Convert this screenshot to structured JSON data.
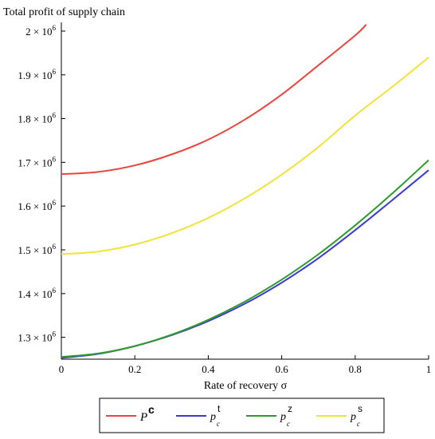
{
  "chart_data": {
    "type": "line",
    "ylabel": "Total profit of supply chain",
    "xlabel": "Rate of recovery σ",
    "xlim": [
      0,
      1
    ],
    "ylim": [
      1250000,
      2020000
    ],
    "x_ticks": [
      0,
      0.2,
      0.4,
      0.6,
      0.8,
      1
    ],
    "x_tick_labels": [
      "0",
      "0.2",
      "0.4",
      "0.6",
      "0.8",
      "1"
    ],
    "y_ticks": [
      {
        "mantissa": "1.3",
        "value": 1300000
      },
      {
        "mantissa": "1.4",
        "value": 1400000
      },
      {
        "mantissa": "1.5",
        "value": 1500000
      },
      {
        "mantissa": "1.6",
        "value": 1600000
      },
      {
        "mantissa": "1.7",
        "value": 1700000
      },
      {
        "mantissa": "1.8",
        "value": 1800000
      },
      {
        "mantissa": "1.9",
        "value": 1900000
      },
      {
        "mantissa": "2",
        "value": 2000000
      }
    ],
    "y_tick_times": "×",
    "y_tick_base": "10",
    "y_tick_exp": "6",
    "legend_position": "bottom",
    "grid": false,
    "series": [
      {
        "name": "P",
        "sup": "c",
        "sub": "",
        "color": "#e8453c",
        "x": [
          0,
          0.1,
          0.2,
          0.3,
          0.4,
          0.5,
          0.6,
          0.7,
          0.8,
          0.83
        ],
        "y": [
          1673000,
          1678000,
          1693000,
          1718000,
          1752000,
          1798000,
          1855000,
          1922000,
          1990000,
          2015000
        ]
      },
      {
        "name": "p",
        "sup": "t",
        "sub": "c",
        "color": "#3b3bd4",
        "x": [
          0,
          0.1,
          0.2,
          0.3,
          0.4,
          0.5,
          0.6,
          0.7,
          0.8,
          0.9,
          1
        ],
        "y": [
          1253000,
          1262000,
          1280000,
          1305000,
          1337000,
          1377000,
          1425000,
          1481000,
          1545000,
          1613000,
          1682000
        ]
      },
      {
        "name": "p",
        "sup": "z",
        "sub": "c",
        "color": "#2e9a2e",
        "x": [
          0,
          0.1,
          0.2,
          0.3,
          0.4,
          0.5,
          0.6,
          0.7,
          0.8,
          0.9,
          1
        ],
        "y": [
          1255000,
          1263000,
          1280000,
          1306000,
          1340000,
          1382000,
          1432000,
          1490000,
          1556000,
          1628000,
          1705000
        ]
      },
      {
        "name": "p",
        "sup": "s",
        "sub": "c",
        "color": "#f1e33a",
        "x": [
          0,
          0.1,
          0.2,
          0.3,
          0.4,
          0.5,
          0.6,
          0.7,
          0.8,
          0.9,
          1
        ],
        "y": [
          1490000,
          1496000,
          1512000,
          1538000,
          1573000,
          1618000,
          1672000,
          1735000,
          1807000,
          1872000,
          1940000
        ]
      }
    ]
  }
}
